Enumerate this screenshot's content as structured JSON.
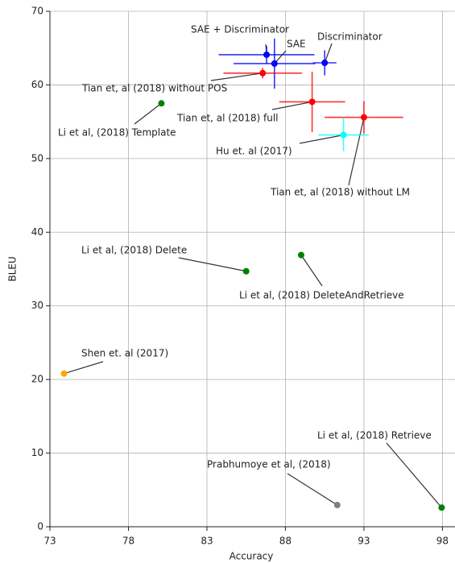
{
  "chart_data": {
    "type": "scatter",
    "xlabel": "Accuracy",
    "ylabel": "BLEU",
    "xlim": [
      73,
      98.8
    ],
    "ylim": [
      0,
      70
    ],
    "xticks": [
      73,
      78,
      83,
      88,
      93,
      98
    ],
    "yticks": [
      0,
      10,
      20,
      30,
      40,
      50,
      60,
      70
    ],
    "grid": true,
    "points": [
      {
        "label": "SAE + Discriminator",
        "x": 86.8,
        "y": 64.1,
        "xerr": 3.05,
        "yerr": 1.2,
        "color": "#0000ff"
      },
      {
        "label": "SAE",
        "x": 87.3,
        "y": 62.9,
        "xerr": 2.6,
        "yerr": 3.4,
        "color": "#0000ff"
      },
      {
        "label": "Discriminator",
        "x": 90.5,
        "y": 63.0,
        "xerr": 0.75,
        "yerr": 1.7,
        "color": "#0000ff"
      },
      {
        "label": "Tian et, al (2018) without POS",
        "x": 86.55,
        "y": 61.6,
        "xerr": 2.5,
        "yerr": 0.7,
        "color": "#ff0000"
      },
      {
        "label": "Tian et, al (2018) full",
        "x": 89.7,
        "y": 57.7,
        "xerr": 2.1,
        "yerr": 4.1,
        "color": "#ff0000"
      },
      {
        "label": "Tian et, al (2018) without LM",
        "x": 93.0,
        "y": 55.6,
        "xerr": 2.5,
        "yerr": 2.2,
        "color": "#ff0000"
      },
      {
        "label": "Hu et. al (2017)",
        "x": 91.7,
        "y": 53.2,
        "xerr": 1.6,
        "yerr": 2.2,
        "color": "#00ffff"
      },
      {
        "label": "Li et al, (2018) Template",
        "x": 80.1,
        "y": 57.5,
        "color": "#008000"
      },
      {
        "label": "Li et al, (2018) Delete",
        "x": 85.5,
        "y": 34.7,
        "color": "#008000"
      },
      {
        "label": "Li et al, (2018) DeleteAndRetrieve",
        "x": 89.0,
        "y": 36.9,
        "color": "#008000"
      },
      {
        "label": "Shen et. al (2017)",
        "x": 73.9,
        "y": 20.8,
        "color": "#ffa500"
      },
      {
        "label": "Prabhumoye et al, (2018)",
        "x": 91.3,
        "y": 2.95,
        "color": "#808080"
      },
      {
        "label": "Li et al, (2018) Retrieve",
        "x": 97.95,
        "y": 2.6,
        "color": "#008000"
      }
    ]
  }
}
